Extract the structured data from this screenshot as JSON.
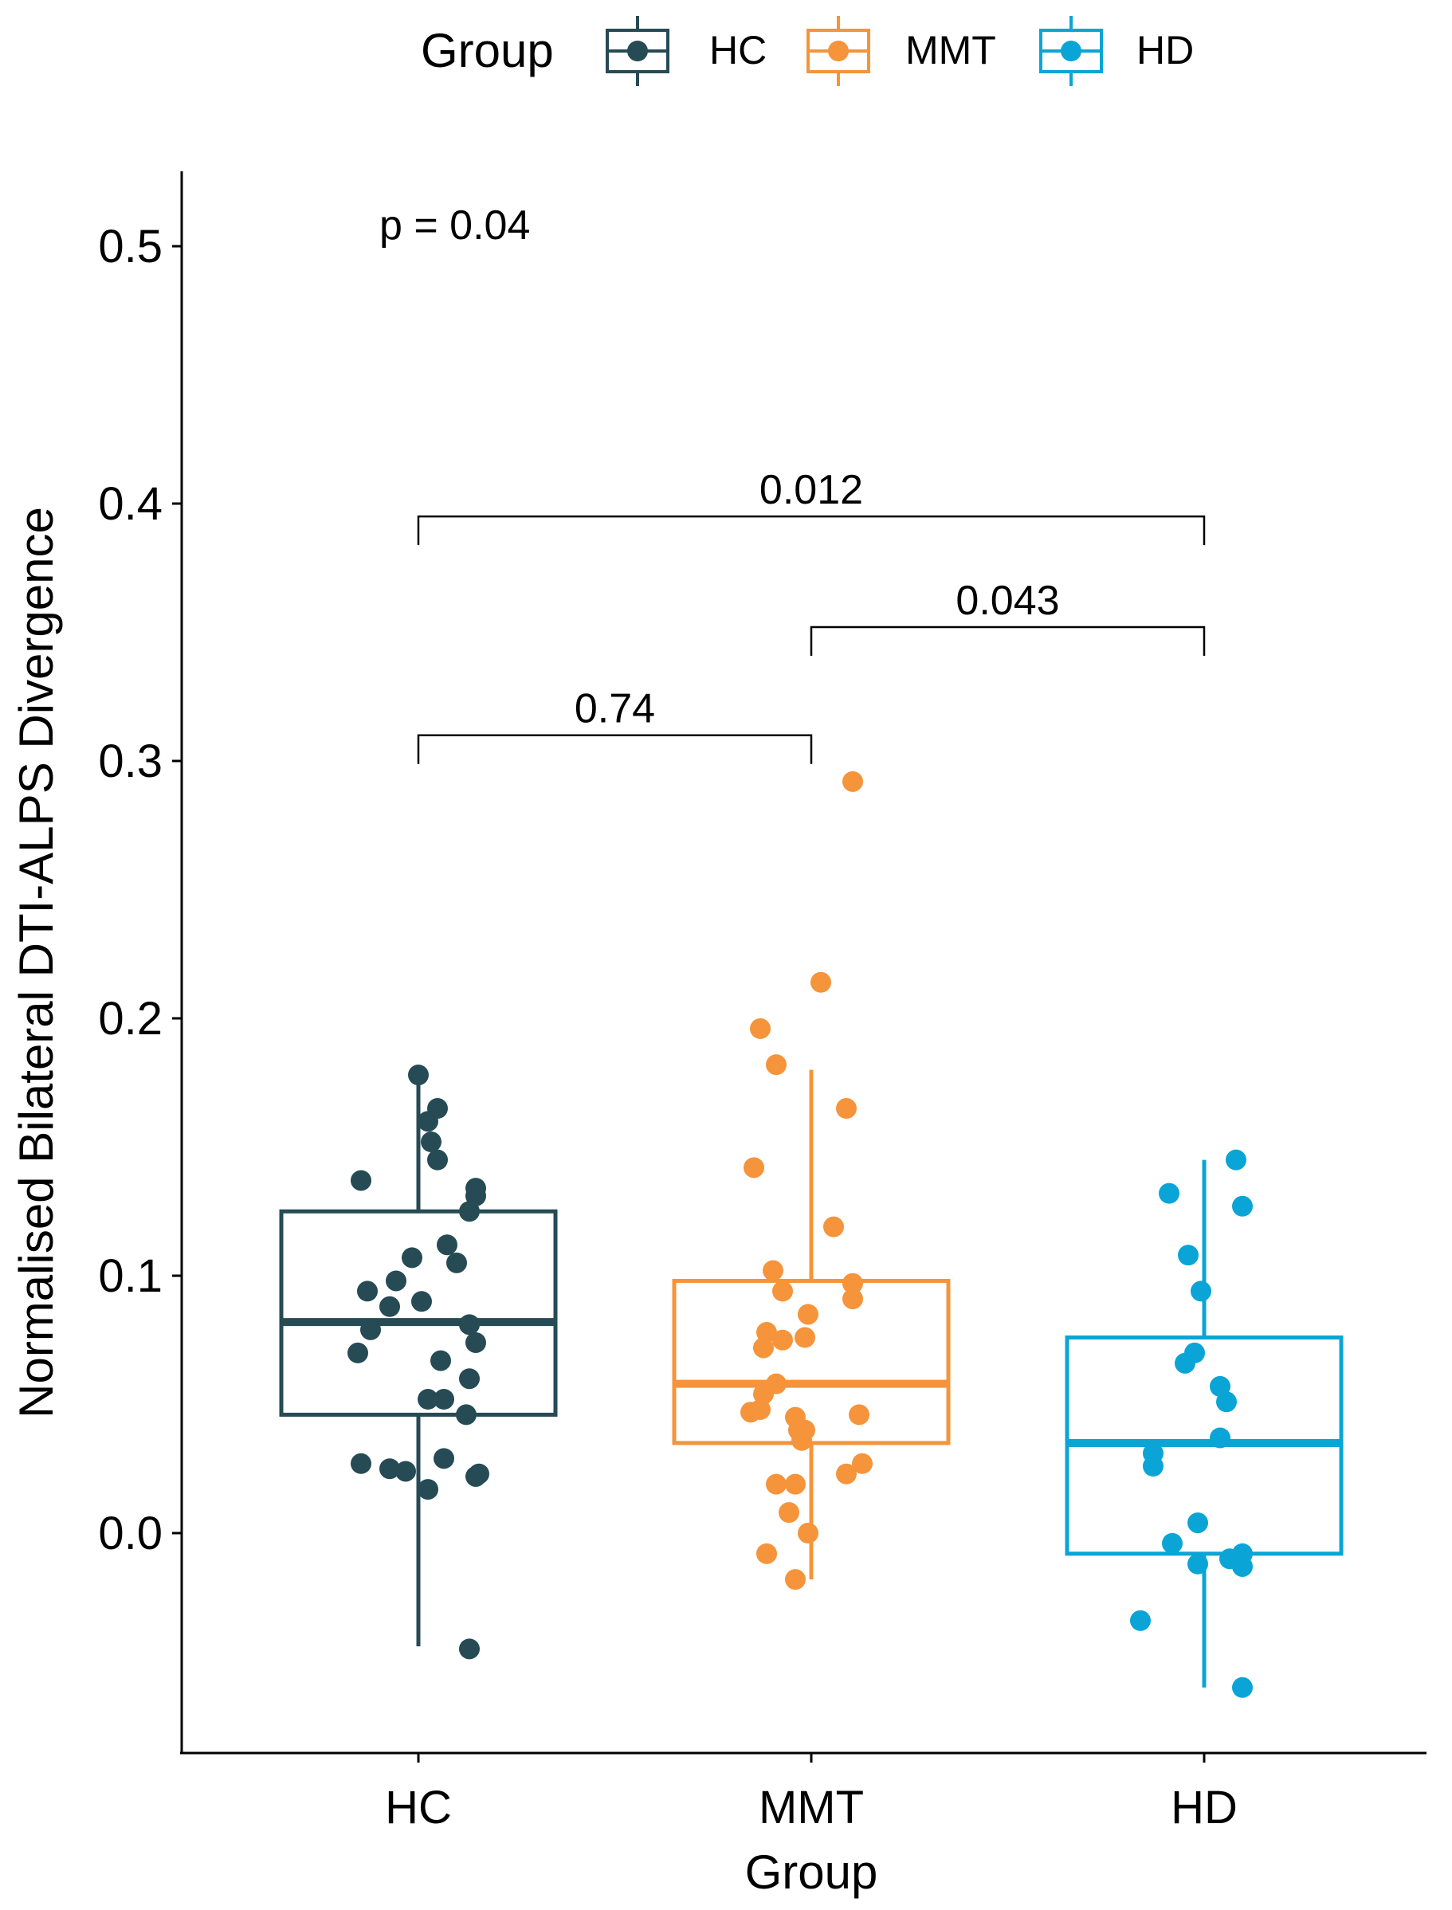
{
  "chart_data": {
    "type": "box",
    "xlabel": "Group",
    "ylabel": "Normalised Bilateral DTI-ALPS Divergence",
    "categories": [
      "HC",
      "MMT",
      "HD"
    ],
    "ylim": [
      -0.085,
      0.525
    ],
    "yticks": [
      0.0,
      0.1,
      0.2,
      0.3,
      0.4,
      0.5
    ],
    "ytick_labels": [
      "0.0",
      "0.1",
      "0.2",
      "0.3",
      "0.4",
      "0.5"
    ],
    "grid": false,
    "legend": {
      "title": "Group",
      "position": "top",
      "entries": [
        {
          "label": "HC",
          "color": "#264b55"
        },
        {
          "label": "MMT",
          "color": "#f5943a"
        },
        {
          "label": "HD",
          "color": "#0aa5d6"
        }
      ]
    },
    "overall_test": {
      "label": "p = 0.04"
    },
    "comparisons": [
      {
        "group1": "HC",
        "group2": "MMT",
        "label": "0.74",
        "y": 0.31
      },
      {
        "group1": "MMT",
        "group2": "HD",
        "label": "0.043",
        "y": 0.352
      },
      {
        "group1": "HC",
        "group2": "HD",
        "label": "0.012",
        "y": 0.395
      }
    ],
    "series": [
      {
        "name": "HC",
        "color": "#264b55",
        "box": {
          "q1": 0.046,
          "median": 0.082,
          "q3": 0.125,
          "whisker_low": -0.044,
          "whisker_high": 0.178
        },
        "points": [
          [
            -0.18,
            0.137
          ],
          [
            0.0,
            0.178
          ],
          [
            0.03,
            0.16
          ],
          [
            0.06,
            0.165
          ],
          [
            0.04,
            0.152
          ],
          [
            0.06,
            0.145
          ],
          [
            0.18,
            0.134
          ],
          [
            0.18,
            0.131
          ],
          [
            0.16,
            0.125
          ],
          [
            0.09,
            0.112
          ],
          [
            -0.02,
            0.107
          ],
          [
            0.12,
            0.105
          ],
          [
            -0.16,
            0.094
          ],
          [
            -0.07,
            0.098
          ],
          [
            -0.09,
            0.088
          ],
          [
            0.01,
            0.09
          ],
          [
            -0.15,
            0.079
          ],
          [
            0.16,
            0.081
          ],
          [
            -0.19,
            0.07
          ],
          [
            0.18,
            0.074
          ],
          [
            0.07,
            0.067
          ],
          [
            0.16,
            0.06
          ],
          [
            0.03,
            0.052
          ],
          [
            0.08,
            0.052
          ],
          [
            0.15,
            0.046
          ],
          [
            -0.18,
            0.027
          ],
          [
            -0.09,
            0.025
          ],
          [
            -0.04,
            0.024
          ],
          [
            0.08,
            0.029
          ],
          [
            0.18,
            0.022
          ],
          [
            0.19,
            0.023
          ],
          [
            0.03,
            0.017
          ],
          [
            0.16,
            -0.045
          ]
        ]
      },
      {
        "name": "MMT",
        "color": "#f5943a",
        "box": {
          "q1": 0.035,
          "median": 0.058,
          "q3": 0.098,
          "whisker_low": -0.018,
          "whisker_high": 0.18
        },
        "points": [
          [
            0.13,
            0.292
          ],
          [
            0.03,
            0.214
          ],
          [
            -0.16,
            0.196
          ],
          [
            -0.11,
            0.182
          ],
          [
            0.11,
            0.165
          ],
          [
            -0.18,
            0.142
          ],
          [
            0.07,
            0.119
          ],
          [
            -0.12,
            0.102
          ],
          [
            0.13,
            0.097
          ],
          [
            0.13,
            0.091
          ],
          [
            -0.09,
            0.094
          ],
          [
            -0.01,
            0.085
          ],
          [
            -0.14,
            0.078
          ],
          [
            -0.09,
            0.075
          ],
          [
            -0.15,
            0.072
          ],
          [
            -0.02,
            0.076
          ],
          [
            -0.11,
            0.058
          ],
          [
            -0.15,
            0.054
          ],
          [
            -0.19,
            0.047
          ],
          [
            -0.16,
            0.048
          ],
          [
            -0.05,
            0.045
          ],
          [
            0.15,
            0.046
          ],
          [
            -0.04,
            0.04
          ],
          [
            -0.03,
            0.036
          ],
          [
            -0.02,
            0.04
          ],
          [
            0.16,
            0.027
          ],
          [
            0.11,
            0.023
          ],
          [
            -0.11,
            0.019
          ],
          [
            -0.05,
            0.019
          ],
          [
            -0.07,
            0.008
          ],
          [
            -0.01,
            0.0
          ],
          [
            -0.14,
            -0.008
          ],
          [
            -0.05,
            -0.018
          ]
        ]
      },
      {
        "name": "HD",
        "color": "#0aa5d6",
        "box": {
          "q1": -0.008,
          "median": 0.035,
          "q3": 0.076,
          "whisker_low": -0.06,
          "whisker_high": 0.145
        },
        "points": [
          [
            0.1,
            0.145
          ],
          [
            -0.11,
            0.132
          ],
          [
            0.12,
            0.127
          ],
          [
            -0.05,
            0.108
          ],
          [
            -0.01,
            0.094
          ],
          [
            -0.03,
            0.07
          ],
          [
            -0.06,
            0.066
          ],
          [
            0.05,
            0.057
          ],
          [
            0.07,
            0.051
          ],
          [
            0.05,
            0.037
          ],
          [
            -0.16,
            0.031
          ],
          [
            -0.16,
            0.026
          ],
          [
            -0.02,
            0.004
          ],
          [
            -0.1,
            -0.004
          ],
          [
            -0.02,
            -0.012
          ],
          [
            0.08,
            -0.01
          ],
          [
            0.12,
            -0.008
          ],
          [
            0.12,
            -0.013
          ],
          [
            -0.2,
            -0.034
          ],
          [
            0.12,
            -0.06
          ]
        ]
      }
    ]
  }
}
